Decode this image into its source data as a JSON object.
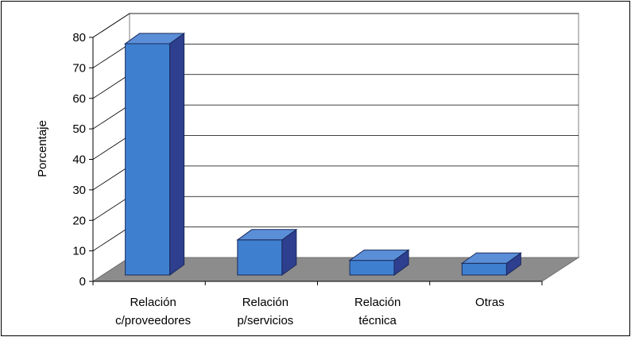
{
  "chart_data": {
    "type": "bar",
    "style": "3d",
    "categories": [
      [
        "Relación",
        "c/proveedores"
      ],
      [
        "Relación",
        "p/servicios"
      ],
      [
        "Relación",
        "técnica"
      ],
      [
        "Otras"
      ]
    ],
    "values": [
      79,
      12,
      5,
      4
    ],
    "ylabel": "Porcentaje",
    "ylim": [
      0,
      80
    ],
    "yticks": [
      "0",
      "10",
      "20",
      "30",
      "40",
      "50",
      "60",
      "70",
      "80"
    ],
    "grid": true,
    "legend": "none",
    "colors": {
      "bar_front": "#3f7fd0",
      "bar_side": "#2f3f8f",
      "bar_top": "#5a8fd8",
      "bar_stroke": "#1a2a5a",
      "floor": "#8c8c8c",
      "wall": "#ffffff",
      "grid": "#000000"
    }
  }
}
